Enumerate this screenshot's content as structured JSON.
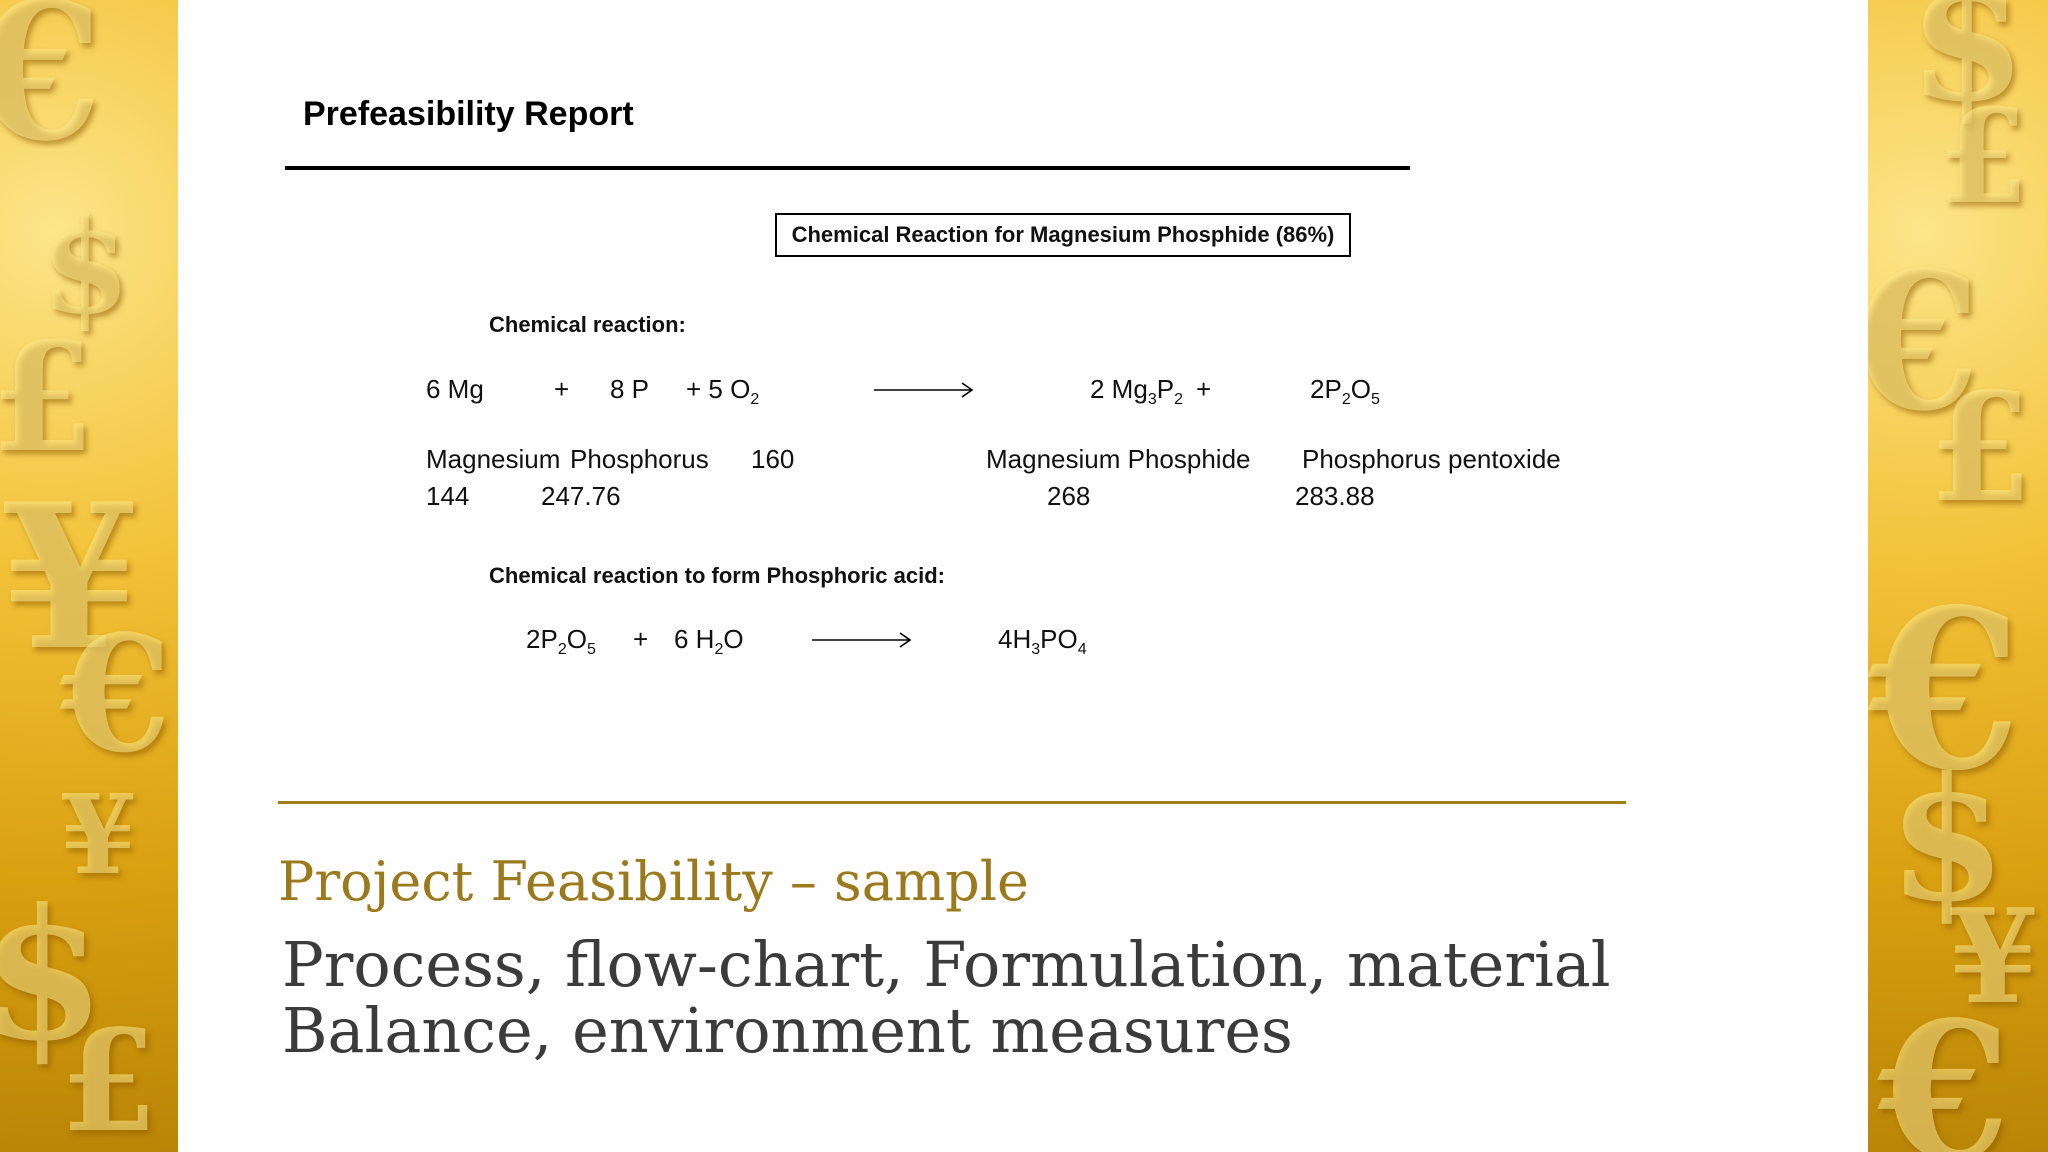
{
  "report_title": "Prefeasibility Report",
  "boxed_heading": "Chemical Reaction for Magnesium  Phosphide (86%)",
  "section1_label": "Chemical reaction:",
  "reaction1": {
    "r1": "6 Mg",
    "plus1": "+",
    "r2": "8 P",
    "r3_prefix": "+ 5 O",
    "r3_sub": "2",
    "p1_prefix": "2 Mg",
    "p1_sub1": "3",
    "p1_mid": "P",
    "p1_sub2": "2",
    "plus2": "+",
    "p2_prefix": "2P",
    "p2_sub1": "2",
    "p2_mid": "O",
    "p2_sub2": "5"
  },
  "names": {
    "magnesium": "Magnesium",
    "phosphorus": "Phosphorus",
    "oxygen_mass": "160",
    "magnesium_phosphide": "Magnesium  Phosphide",
    "phosphorus_pentoxide": "Phosphorus pentoxide"
  },
  "masses": {
    "magnesium": "144",
    "phosphorus": "247.76",
    "magnesium_phosphide": "268",
    "phosphorus_pentoxide": "283.88"
  },
  "section2_label": "Chemical reaction to form Phosphoric acid:",
  "reaction2": {
    "r1_prefix": "2P",
    "r1_sub1": "2",
    "r1_mid": "O",
    "r1_sub2": "5",
    "plus": "+",
    "r2_prefix": "6 H",
    "r2_sub": "2",
    "r2_suffix": "O",
    "p1_prefix": "4H",
    "p1_sub1": "3",
    "p1_mid": "PO",
    "p1_sub2": "4"
  },
  "caption": "Project Feasibility – sample",
  "body_line1": "Process, flow-chart, Formulation, material",
  "body_line2": "Balance, environment measures",
  "colors": {
    "gold_accent": "#9b7a1d",
    "side_gold": "#e0a91a",
    "body_text": "#3b3b3b"
  },
  "side_glyphs_left": [
    "€",
    "$",
    "£",
    "¥",
    "€",
    "¥",
    "$",
    "£"
  ],
  "side_glyphs_right": [
    "$",
    "£",
    "€",
    "£",
    "€",
    "$",
    "¥",
    "€"
  ]
}
